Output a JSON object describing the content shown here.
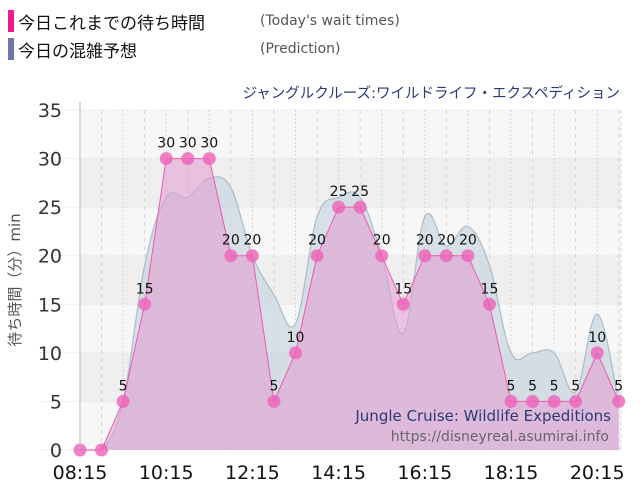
{
  "legend": {
    "actual": {
      "label": "今日これまでの待ち時間",
      "sub": "(Today's wait times)",
      "color": "#f0198f"
    },
    "prediction": {
      "label": "今日の混雑予想",
      "sub": "(Prediction)",
      "color": "#6b77a8"
    }
  },
  "ride_title_jp": "ジャングルクルーズ:ワイルドライフ・エクスペディション",
  "watermark": {
    "title_en": "Jungle Cruise: Wildlife Expeditions",
    "url": "https://disneyreal.asumirai.info"
  },
  "chart_data": {
    "type": "area",
    "title": "ジャングルクルーズ:ワイルドライフ・エクスペディション",
    "xlabel": "",
    "ylabel": "待ち時間（分）min",
    "ylim": [
      0,
      35
    ],
    "yticks": [
      0,
      5,
      10,
      15,
      20,
      25,
      30,
      35
    ],
    "xtick_labels": [
      "08:15",
      "10:15",
      "12:15",
      "14:15",
      "16:15",
      "18:15",
      "20:15"
    ],
    "grid": true,
    "legend_position": "top-left",
    "x": [
      "08:15",
      "08:45",
      "09:15",
      "09:45",
      "10:15",
      "10:45",
      "11:15",
      "11:45",
      "12:15",
      "12:45",
      "13:15",
      "13:45",
      "14:15",
      "14:45",
      "15:15",
      "15:45",
      "16:15",
      "16:45",
      "17:15",
      "17:45",
      "18:15",
      "18:45",
      "19:15",
      "19:45",
      "20:15",
      "20:45"
    ],
    "series": [
      {
        "name": "今日これまでの待ち時間 (Today's wait times)",
        "color": "#f0198f",
        "values": [
          0,
          0,
          5,
          15,
          30,
          30,
          30,
          20,
          20,
          5,
          10,
          20,
          25,
          25,
          20,
          15,
          20,
          20,
          20,
          15,
          5,
          5,
          5,
          5,
          10,
          5
        ],
        "labels_shown": [
          false,
          false,
          true,
          true,
          true,
          true,
          true,
          true,
          true,
          true,
          true,
          true,
          true,
          true,
          true,
          true,
          true,
          true,
          true,
          true,
          true,
          true,
          true,
          true,
          true,
          true
        ]
      },
      {
        "name": "今日の混雑予想 (Prediction)",
        "color": "#6b77a8",
        "values": [
          0,
          0,
          5,
          19,
          26,
          26,
          28,
          27,
          20,
          16,
          13,
          24,
          26,
          26,
          20,
          12,
          24,
          21,
          23,
          19,
          10,
          10,
          10,
          6,
          14,
          5
        ]
      }
    ]
  }
}
